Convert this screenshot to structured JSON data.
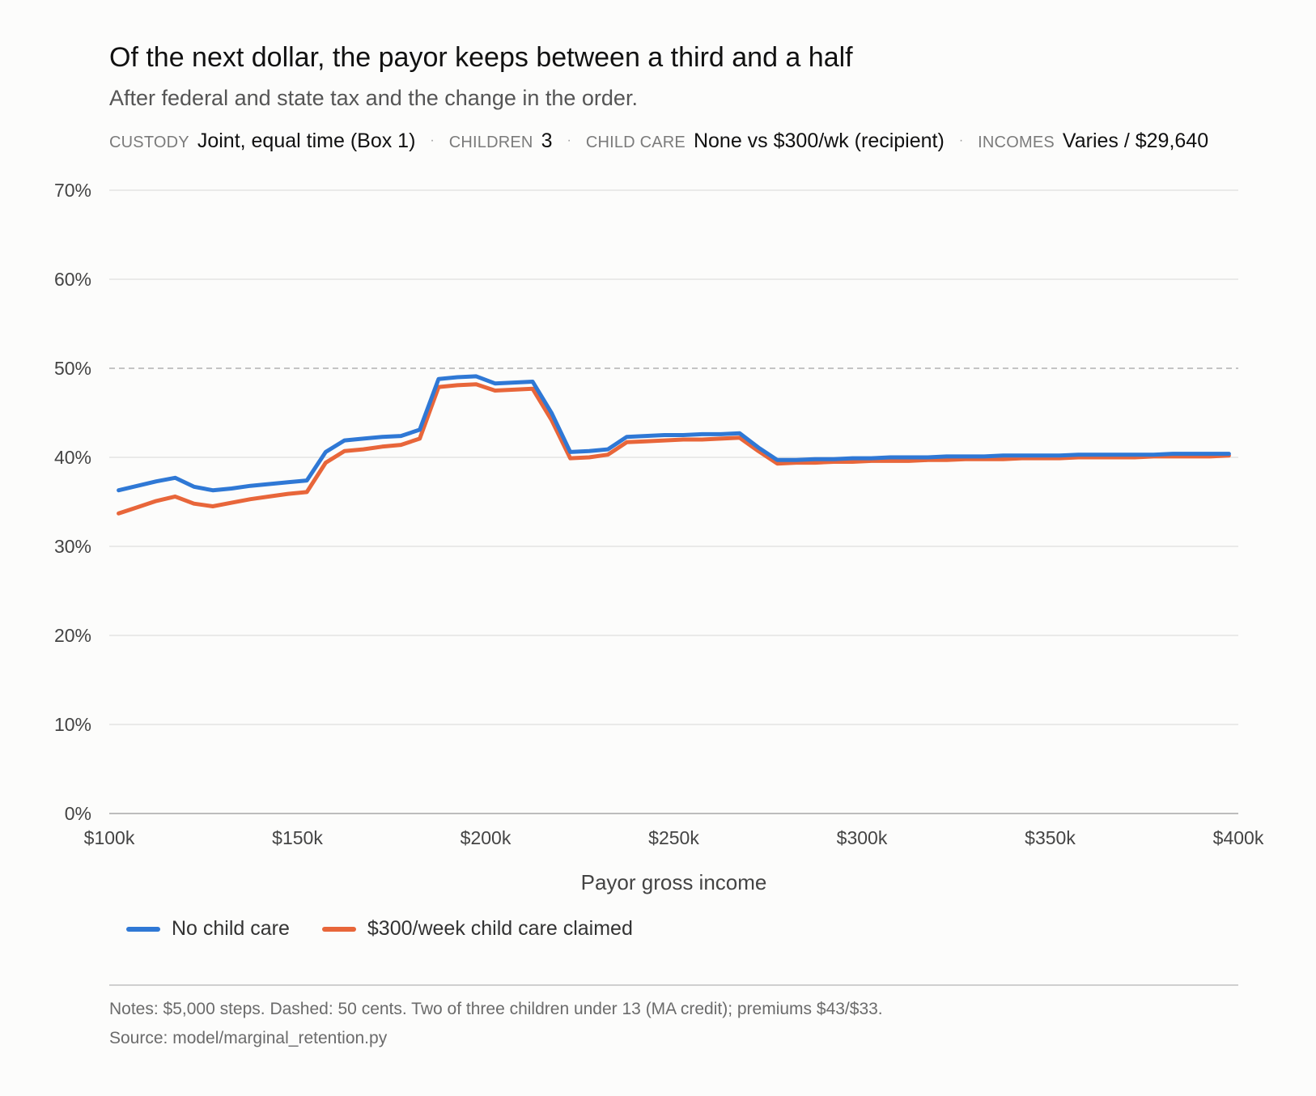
{
  "title": "Of the next dollar, the payor keeps between a third and a half",
  "subtitle": "After federal and state tax and the change in the order.",
  "meta": [
    {
      "key": "CUSTODY",
      "value": "Joint, equal time (Box 1)"
    },
    {
      "key": "CHILDREN",
      "value": "3"
    },
    {
      "key": "CHILD CARE",
      "value": "None vs $300/wk (recipient)"
    },
    {
      "key": "INCOMES",
      "value": "Varies / $29,640"
    }
  ],
  "notes": "Notes: $5,000 steps. Dashed: 50 cents. Two of three children under 13 (MA credit); premiums $43/$33.",
  "source": "Source: model/marginal_retention.py",
  "chart_data": {
    "type": "line",
    "xlabel": "Payor gross income",
    "ylabel": "",
    "xlim": [
      100000,
      400000
    ],
    "ylim": [
      0,
      70
    ],
    "x_ticks": [
      100000,
      150000,
      200000,
      250000,
      300000,
      350000,
      400000
    ],
    "x_tick_labels": [
      "$100k",
      "$150k",
      "$200k",
      "$250k",
      "$300k",
      "$350k",
      "$400k"
    ],
    "y_ticks": [
      0,
      10,
      20,
      30,
      40,
      50,
      60,
      70
    ],
    "y_tick_labels": [
      "0%",
      "10%",
      "20%",
      "30%",
      "40%",
      "50%",
      "60%",
      "70%"
    ],
    "reference_line": {
      "y": 50,
      "style": "dashed"
    },
    "grid": true,
    "legend_position": "bottom-left",
    "x": [
      102500,
      107500,
      112500,
      117500,
      122500,
      127500,
      132500,
      137500,
      142500,
      147500,
      152500,
      157500,
      162500,
      167500,
      172500,
      177500,
      182500,
      187500,
      192500,
      197500,
      202500,
      207500,
      212500,
      217500,
      222500,
      227500,
      232500,
      237500,
      242500,
      247500,
      252500,
      257500,
      262500,
      267500,
      272500,
      277500,
      282500,
      287500,
      292500,
      297500,
      302500,
      307500,
      312500,
      317500,
      322500,
      327500,
      332500,
      337500,
      342500,
      347500,
      352500,
      357500,
      362500,
      367500,
      372500,
      377500,
      382500,
      387500,
      392500,
      397500
    ],
    "series": [
      {
        "name": "No child care",
        "color": "#2f78d5",
        "values": [
          36.3,
          36.8,
          37.3,
          37.7,
          36.7,
          36.3,
          36.5,
          36.8,
          37.0,
          37.2,
          37.4,
          40.6,
          41.9,
          42.1,
          42.3,
          42.4,
          43.1,
          48.8,
          49.0,
          49.1,
          48.3,
          48.4,
          48.5,
          45.0,
          40.6,
          40.7,
          40.9,
          42.3,
          42.4,
          42.5,
          42.5,
          42.6,
          42.6,
          42.7,
          41.1,
          39.7,
          39.7,
          39.8,
          39.8,
          39.9,
          39.9,
          40.0,
          40.0,
          40.0,
          40.1,
          40.1,
          40.1,
          40.2,
          40.2,
          40.2,
          40.2,
          40.3,
          40.3,
          40.3,
          40.3,
          40.3,
          40.4,
          40.4,
          40.4,
          40.4
        ]
      },
      {
        "name": "$300/week child care claimed",
        "color": "#e8663a",
        "values": [
          33.7,
          34.4,
          35.1,
          35.6,
          34.8,
          34.5,
          34.9,
          35.3,
          35.6,
          35.9,
          36.1,
          39.4,
          40.7,
          40.9,
          41.2,
          41.4,
          42.1,
          47.9,
          48.1,
          48.2,
          47.5,
          47.6,
          47.7,
          44.2,
          39.9,
          40.0,
          40.3,
          41.7,
          41.8,
          41.9,
          42.0,
          42.0,
          42.1,
          42.2,
          40.7,
          39.3,
          39.4,
          39.4,
          39.5,
          39.5,
          39.6,
          39.6,
          39.6,
          39.7,
          39.7,
          39.8,
          39.8,
          39.8,
          39.9,
          39.9,
          39.9,
          40.0,
          40.0,
          40.0,
          40.0,
          40.1,
          40.1,
          40.1,
          40.1,
          40.2
        ]
      }
    ]
  }
}
